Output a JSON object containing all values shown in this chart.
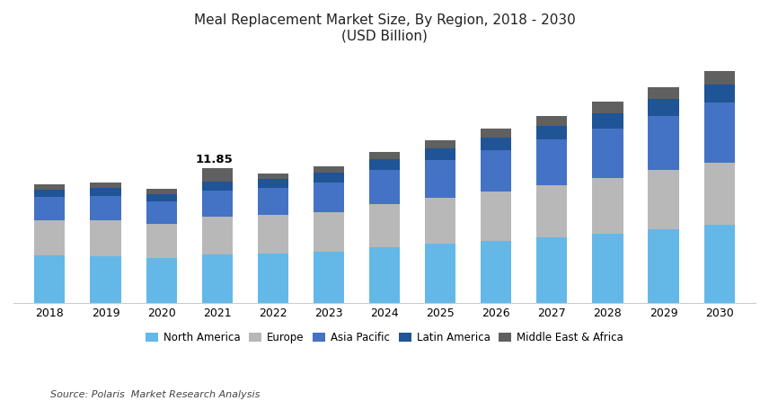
{
  "years": [
    2018,
    2019,
    2020,
    2021,
    2022,
    2023,
    2024,
    2025,
    2026,
    2027,
    2028,
    2029,
    2030
  ],
  "north_america": [
    4.2,
    4.1,
    3.95,
    4.3,
    4.35,
    4.5,
    4.9,
    5.2,
    5.45,
    5.8,
    6.1,
    6.5,
    6.85
  ],
  "europe": [
    3.1,
    3.2,
    3.0,
    3.3,
    3.35,
    3.5,
    3.8,
    4.05,
    4.3,
    4.55,
    4.85,
    5.15,
    5.5
  ],
  "asia_pacific": [
    2.0,
    2.1,
    2.0,
    2.3,
    2.4,
    2.6,
    3.0,
    3.3,
    3.65,
    4.0,
    4.4,
    4.8,
    5.25
  ],
  "latin_america": [
    0.65,
    0.7,
    0.62,
    0.75,
    0.77,
    0.82,
    0.92,
    1.0,
    1.1,
    1.21,
    1.33,
    1.45,
    1.58
  ],
  "mea": [
    0.45,
    0.5,
    0.42,
    1.2,
    0.52,
    0.58,
    0.65,
    0.72,
    0.8,
    0.88,
    0.97,
    1.06,
    1.17
  ],
  "annotation_year": 2021,
  "annotation_value": "11.85",
  "colors": {
    "north_america": "#63B8E8",
    "europe": "#B8B8B8",
    "asia_pacific": "#4472C4",
    "latin_america": "#1F5496",
    "mea": "#606060"
  },
  "legend_labels": [
    "North America",
    "Europe",
    "Asia Pacific",
    "Latin America",
    "Middle East & Africa"
  ],
  "title_line1": "Meal Replacement Market Size, By Region, 2018 - 2030",
  "title_line2": "(USD Billion)",
  "source": "Source: Polaris  Market Research Analysis",
  "bar_width": 0.55,
  "ylim_max": 22,
  "background_color": "#ffffff",
  "title_fontsize": 11,
  "axis_fontsize": 9,
  "legend_fontsize": 8.5
}
